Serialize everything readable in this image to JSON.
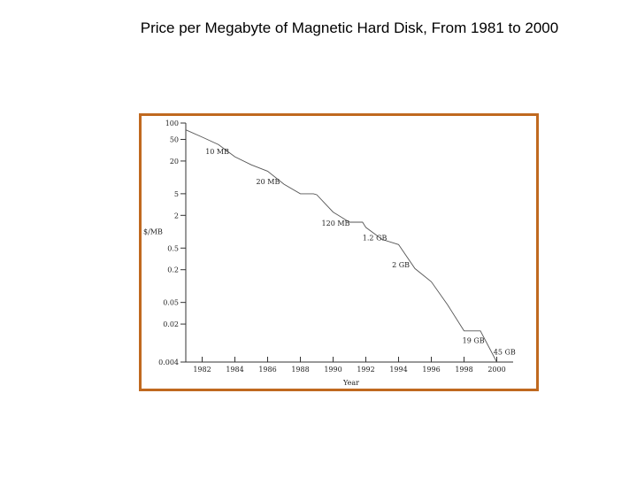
{
  "slide": {
    "title": "Price per Megabyte of Magnetic Hard Disk, From 1981 to 2000",
    "frame_color": "#c0691f"
  },
  "chart_data": {
    "type": "line",
    "title": "",
    "xlabel": "Year",
    "ylabel": "$/MB",
    "xlim": [
      1981,
      2001
    ],
    "ylim": [
      0.004,
      100
    ],
    "yscale": "log",
    "grid": false,
    "x_ticks": [
      "1982",
      "1984",
      "1986",
      "1988",
      "1990",
      "1992",
      "1994",
      "1996",
      "1998",
      "2000"
    ],
    "y_ticks": [
      "100",
      "50",
      "20",
      "5",
      "2",
      "0.5",
      "0.2",
      "0.05",
      "0.02",
      "0.004"
    ],
    "series": [
      {
        "x": [
          1981,
          1982,
          1983,
          1984,
          1985,
          1986,
          1987,
          1988,
          1988.8,
          1989,
          1990,
          1991,
          1991.8,
          1992,
          1993,
          1994,
          1995,
          1996,
          1997,
          1998,
          1999,
          2000
        ],
        "y": [
          75,
          55,
          40,
          24,
          17,
          13,
          7.5,
          5.0,
          5.0,
          4.8,
          2.3,
          1.5,
          1.5,
          1.2,
          0.72,
          0.58,
          0.21,
          0.12,
          0.045,
          0.015,
          0.015,
          0.004
        ]
      }
    ],
    "annotations": [
      {
        "text": "10 MB",
        "x": 1982.2,
        "y": 27
      },
      {
        "text": "20 MB",
        "x": 1985.3,
        "y": 7.5
      },
      {
        "text": "120 MB",
        "x": 1989.3,
        "y": 1.3
      },
      {
        "text": "1.2 GB",
        "x": 1991.8,
        "y": 0.7
      },
      {
        "text": "2 GB",
        "x": 1993.6,
        "y": 0.22
      },
      {
        "text": "19 GB",
        "x": 1997.9,
        "y": 0.009
      },
      {
        "text": "45 GB",
        "x": 1999.8,
        "y": 0.0055
      }
    ]
  }
}
